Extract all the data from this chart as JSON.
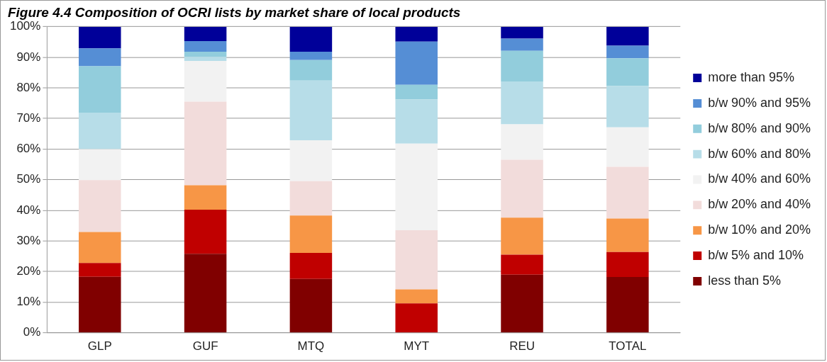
{
  "chart_data": {
    "type": "bar",
    "stacked": true,
    "title": "Figure 4.4 Composition of OCRI lists by market share of local products",
    "categories": [
      "GLP",
      "GUF",
      "MTQ",
      "MYT",
      "REU",
      "TOTAL"
    ],
    "series": [
      {
        "name": "less than 5%",
        "color": "#800000",
        "values": [
          18.3,
          25.8,
          17.6,
          0,
          19.0,
          18.2
        ]
      },
      {
        "name": "b/w 5% and 10%",
        "color": "#c00000",
        "values": [
          4.5,
          14.4,
          8.5,
          9.6,
          6.5,
          8.2
        ]
      },
      {
        "name": "b/w 10% and 20%",
        "color": "#f79646",
        "values": [
          10.1,
          8.0,
          12.2,
          4.6,
          12.1,
          10.9
        ]
      },
      {
        "name": "b/w 20% and 40%",
        "color": "#f2dcdb",
        "values": [
          17.0,
          27.3,
          11.2,
          19.3,
          18.9,
          16.9
        ]
      },
      {
        "name": "b/w 40% and 60%",
        "color": "#f2f2f2",
        "values": [
          10.1,
          13.3,
          13.4,
          28.3,
          11.6,
          12.9
        ]
      },
      {
        "name": "b/w 60% and 80%",
        "color": "#b7dde8",
        "values": [
          11.9,
          1.3,
          19.5,
          14.4,
          14.0,
          13.5
        ]
      },
      {
        "name": "b/w 80% and 90%",
        "color": "#92cddc",
        "values": [
          15.2,
          1.7,
          6.7,
          4.8,
          10.0,
          9.1
        ]
      },
      {
        "name": "b/w 90% and 95%",
        "color": "#558ed5",
        "values": [
          5.8,
          3.5,
          2.7,
          14.1,
          4.0,
          4.1
        ]
      },
      {
        "name": "more than 95%",
        "color": "#000099",
        "values": [
          7.1,
          4.7,
          8.2,
          4.9,
          3.9,
          6.2
        ]
      }
    ],
    "ylim": [
      0,
      100
    ],
    "yticks": [
      {
        "value": 0,
        "label": "0%"
      },
      {
        "value": 10,
        "label": "10%"
      },
      {
        "value": 20,
        "label": "20%"
      },
      {
        "value": 30,
        "label": "30%"
      },
      {
        "value": 40,
        "label": "40%"
      },
      {
        "value": 50,
        "label": "50%"
      },
      {
        "value": 60,
        "label": "60%"
      },
      {
        "value": 70,
        "label": "70%"
      },
      {
        "value": 80,
        "label": "80%"
      },
      {
        "value": 90,
        "label": "90%"
      },
      {
        "value": 100,
        "label": "100%"
      }
    ],
    "grid": "y",
    "legend": "right"
  }
}
